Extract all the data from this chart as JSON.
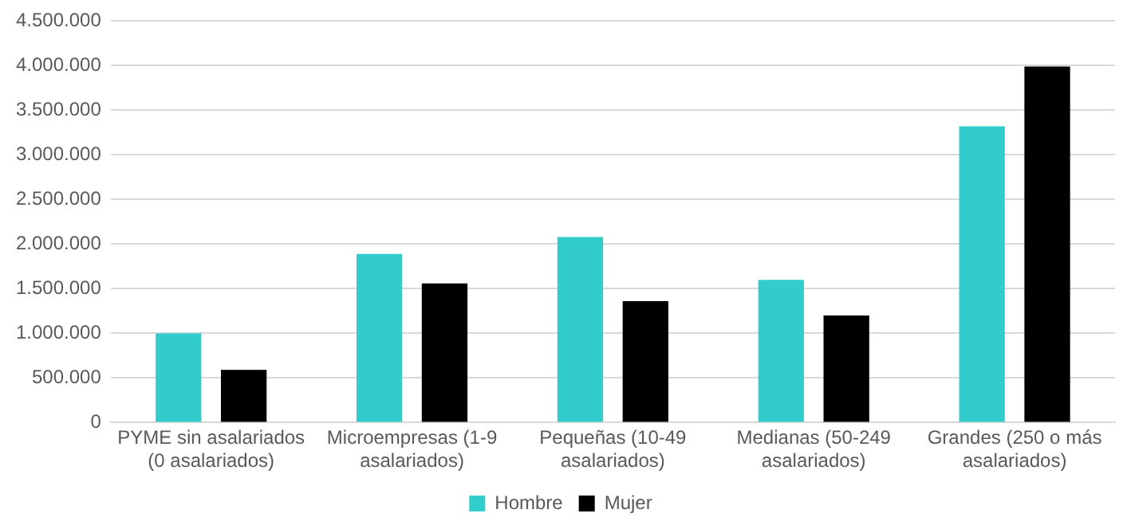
{
  "chart_data": {
    "type": "bar",
    "categories": [
      "PYME sin asalariados (0 asalariados)",
      "Microempresas (1-9 asalariados)",
      "Pequeñas (10-49 asalariados)",
      "Medianas (50-249 asalariados)",
      "Grandes (250 o más asalariados)"
    ],
    "series": [
      {
        "name": "Hombre",
        "color": "#33cccc",
        "values": [
          1000000,
          1890000,
          2080000,
          1600000,
          3320000
        ]
      },
      {
        "name": "Mujer",
        "color": "#000000",
        "values": [
          590000,
          1560000,
          1360000,
          1200000,
          3990000
        ]
      }
    ],
    "ylim": [
      0,
      4500000
    ],
    "yticks": [
      0,
      {
        "value": 500000,
        "label": "500.000"
      },
      {
        "value": 1000000,
        "label": "1.000.000"
      },
      {
        "value": 1500000,
        "label": "1.500.000"
      },
      {
        "value": 2000000,
        "label": "2.000.000"
      },
      {
        "value": 2500000,
        "label": "2.500.000"
      },
      {
        "value": 3000000,
        "label": "3.000.000"
      },
      {
        "value": 3500000,
        "label": "3.500.000"
      },
      {
        "value": 4000000,
        "label": "4.000.000"
      },
      {
        "value": 4500000,
        "label": "4.500.000"
      }
    ],
    "grid": "y",
    "legend": "bottom"
  }
}
